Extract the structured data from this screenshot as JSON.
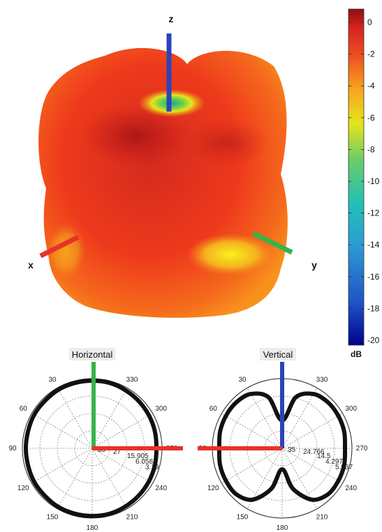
{
  "colors": {
    "hot": "#c41a1a",
    "mid": "#ee3a1c",
    "warm": "#f89a1c",
    "yellow": "#f2ee20",
    "x_axis": "#e8312a",
    "y_axis": "#36b44a",
    "z_axis": "#2c43b8"
  },
  "pattern3d": {
    "axis_labels": {
      "x": "x",
      "y": "y",
      "z": "z"
    }
  },
  "colorbar": {
    "ticks": [
      "0",
      "-2",
      "-4",
      "-6",
      "-8",
      "-10",
      "-12",
      "-14",
      "-16",
      "-18",
      "-20"
    ],
    "unit": "dB",
    "range": [
      -20,
      0
    ],
    "colormap": [
      "#00008c",
      "#1f4fc4",
      "#2d9cd6",
      "#21c0b4",
      "#6acc6a",
      "#e6e41c",
      "#f6a51e",
      "#ee5020",
      "#d42020",
      "#8c1010"
    ]
  },
  "chart_data": [
    {
      "type": "polar",
      "title": "Horizontal",
      "angle_labels": [
        "30",
        "330",
        "60",
        "300",
        "90",
        "270",
        "120",
        "240",
        "150",
        "210",
        "180"
      ],
      "radial_labels": [
        "35",
        "27",
        "15.905",
        "6.058",
        "3.19"
      ],
      "series": [
        {
          "theta_deg": [
            0,
            15,
            30,
            45,
            60,
            75,
            90,
            105,
            120,
            135,
            150,
            165,
            180,
            195,
            210,
            225,
            240,
            255,
            270,
            285,
            300,
            315,
            330,
            345
          ],
          "r_norm": [
            0.97,
            0.97,
            0.97,
            0.96,
            0.96,
            0.95,
            0.95,
            0.95,
            0.96,
            0.96,
            0.97,
            0.97,
            0.97,
            0.97,
            0.96,
            0.95,
            0.94,
            0.93,
            0.92,
            0.93,
            0.94,
            0.95,
            0.96,
            0.97
          ]
        }
      ]
    },
    {
      "type": "polar",
      "title": "Vertical",
      "angle_labels": [
        "30",
        "330",
        "60",
        "300",
        "90",
        "270",
        "120",
        "240",
        "150",
        "210",
        "180"
      ],
      "radial_labels": [
        "35",
        "24.766",
        "14.5",
        "4.297",
        "5.937"
      ],
      "series": [
        {
          "theta_deg": [
            0,
            15,
            30,
            45,
            60,
            75,
            90,
            105,
            120,
            135,
            150,
            165,
            180,
            195,
            210,
            225,
            240,
            255,
            270,
            285,
            300,
            315,
            330,
            345
          ],
          "r_norm": [
            0.4,
            0.76,
            0.9,
            0.93,
            0.93,
            0.92,
            0.9,
            0.92,
            0.93,
            0.93,
            0.85,
            0.6,
            0.3,
            0.6,
            0.85,
            0.93,
            0.93,
            0.92,
            0.9,
            0.92,
            0.93,
            0.93,
            0.9,
            0.76
          ]
        }
      ]
    }
  ]
}
